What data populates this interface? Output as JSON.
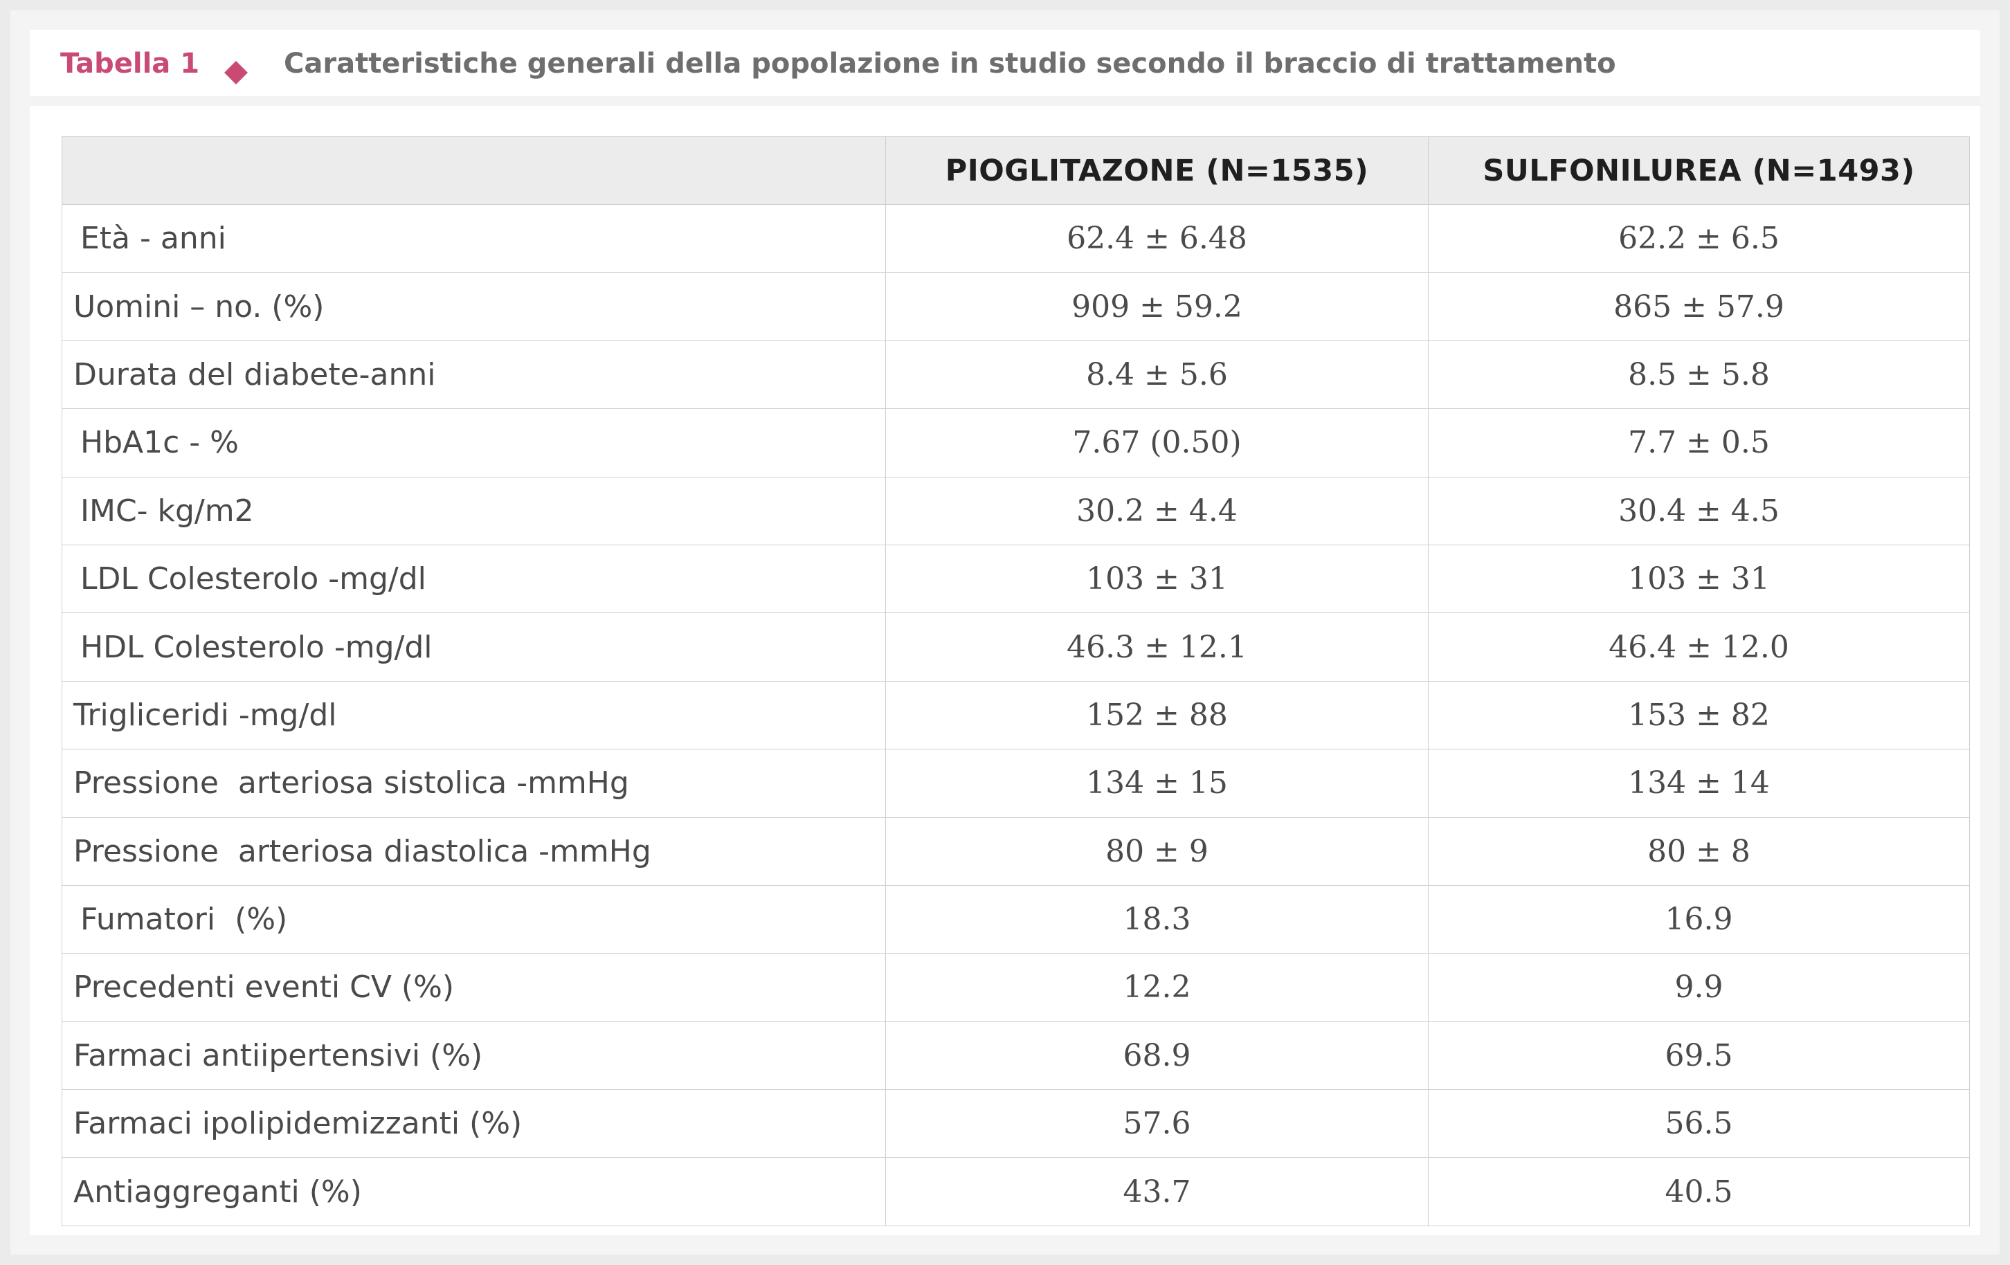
{
  "caption": {
    "label": "Tabella 1",
    "title": "Caratteristiche generali della popolazione in studio secondo il braccio di trattamento",
    "accent_color": "#c94a73",
    "marker_icon": "diamond-icon"
  },
  "table": {
    "headers": [
      "",
      "PIOGLITAZONE (N=1535)",
      "SULFONILUREA (N=1493)"
    ],
    "rows": [
      {
        "label": "Età - anni",
        "pioglitazone": "62.4 ± 6.48",
        "sulfonilurea": "62.2 ± 6.5"
      },
      {
        "label": "Uomini – no. (%)",
        "pioglitazone": "909 ± 59.2",
        "sulfonilurea": "865 ± 57.9"
      },
      {
        "label": "Durata del diabete-anni",
        "pioglitazone": "8.4 ± 5.6",
        "sulfonilurea": "8.5 ± 5.8"
      },
      {
        "label": "HbA1c - %",
        "pioglitazone": "7.67 (0.50)",
        "sulfonilurea": "7.7 ± 0.5"
      },
      {
        "label": "IMC- kg/m2",
        "pioglitazone": "30.2 ± 4.4",
        "sulfonilurea": "30.4 ± 4.5"
      },
      {
        "label": "LDL Colesterolo -mg/dl",
        "pioglitazone": "103 ± 31",
        "sulfonilurea": "103 ± 31"
      },
      {
        "label": "HDL Colesterolo -mg/dl",
        "pioglitazone": "46.3 ± 12.1",
        "sulfonilurea": "46.4 ± 12.0"
      },
      {
        "label": "Trigliceridi -mg/dl",
        "pioglitazone": "152 ± 88",
        "sulfonilurea": "153 ± 82"
      },
      {
        "label": "Pressione  arteriosa sistolica -mmHg",
        "pioglitazone": "134 ± 15",
        "sulfonilurea": "134 ± 14"
      },
      {
        "label": "Pressione  arteriosa diastolica -mmHg",
        "pioglitazone": "80 ± 9",
        "sulfonilurea": "80 ± 8"
      },
      {
        "label": "Fumatori  (%)",
        "pioglitazone": "18.3",
        "sulfonilurea": "16.9"
      },
      {
        "label": "Precedenti eventi CV (%)",
        "pioglitazone": "12.2",
        "sulfonilurea": "9.9"
      },
      {
        "label": "Farmaci antiipertensivi (%)",
        "pioglitazone": "68.9",
        "sulfonilurea": "69.5"
      },
      {
        "label": "Farmaci ipolipidemizzanti (%)",
        "pioglitazone": "57.6",
        "sulfonilurea": "56.5"
      },
      {
        "label": "Antiaggreganti (%)",
        "pioglitazone": "43.7",
        "sulfonilurea": "40.5"
      }
    ]
  }
}
